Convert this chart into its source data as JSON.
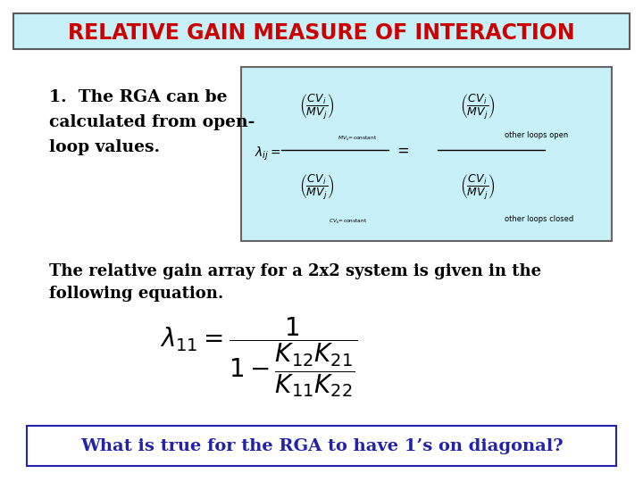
{
  "title": "RELATIVE GAIN MEASURE OF INTERACTION",
  "title_color": "#cc0000",
  "title_bg": "#c8f0f8",
  "title_border": "#5b5b5b",
  "bg_color": "#ffffff",
  "text1_color": "#000000",
  "formula_box_bg": "#c8f0f8",
  "formula_box_border": "#666666",
  "bottom_text": "What is true for the RGA to have 1’s on diagonal?",
  "bottom_text_color": "#2222aa",
  "bottom_box_border": "#2222aa",
  "mid_text": "The relative gain array for a 2x2 system is given in the\nfollowing equation."
}
